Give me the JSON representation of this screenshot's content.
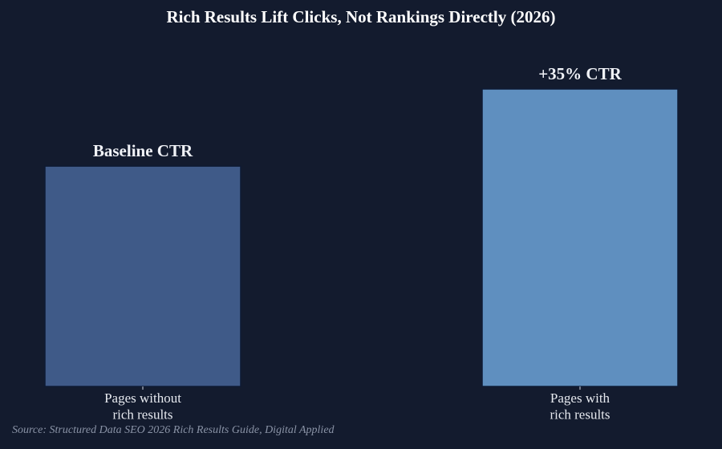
{
  "chart_data": {
    "type": "bar",
    "title": "Rich Results Lift Clicks, Not Rankings Directly (2026)",
    "categories": [
      "Pages without\nrich results",
      "Pages with\nrich results"
    ],
    "values": [
      100,
      135
    ],
    "value_labels": [
      "Baseline CTR",
      "+35% CTR"
    ],
    "colors": [
      "#3f5a88",
      "#5f8fbf"
    ],
    "source": "Source: Structured Data SEO 2026 Rich Results Guide, Digital Applied"
  }
}
